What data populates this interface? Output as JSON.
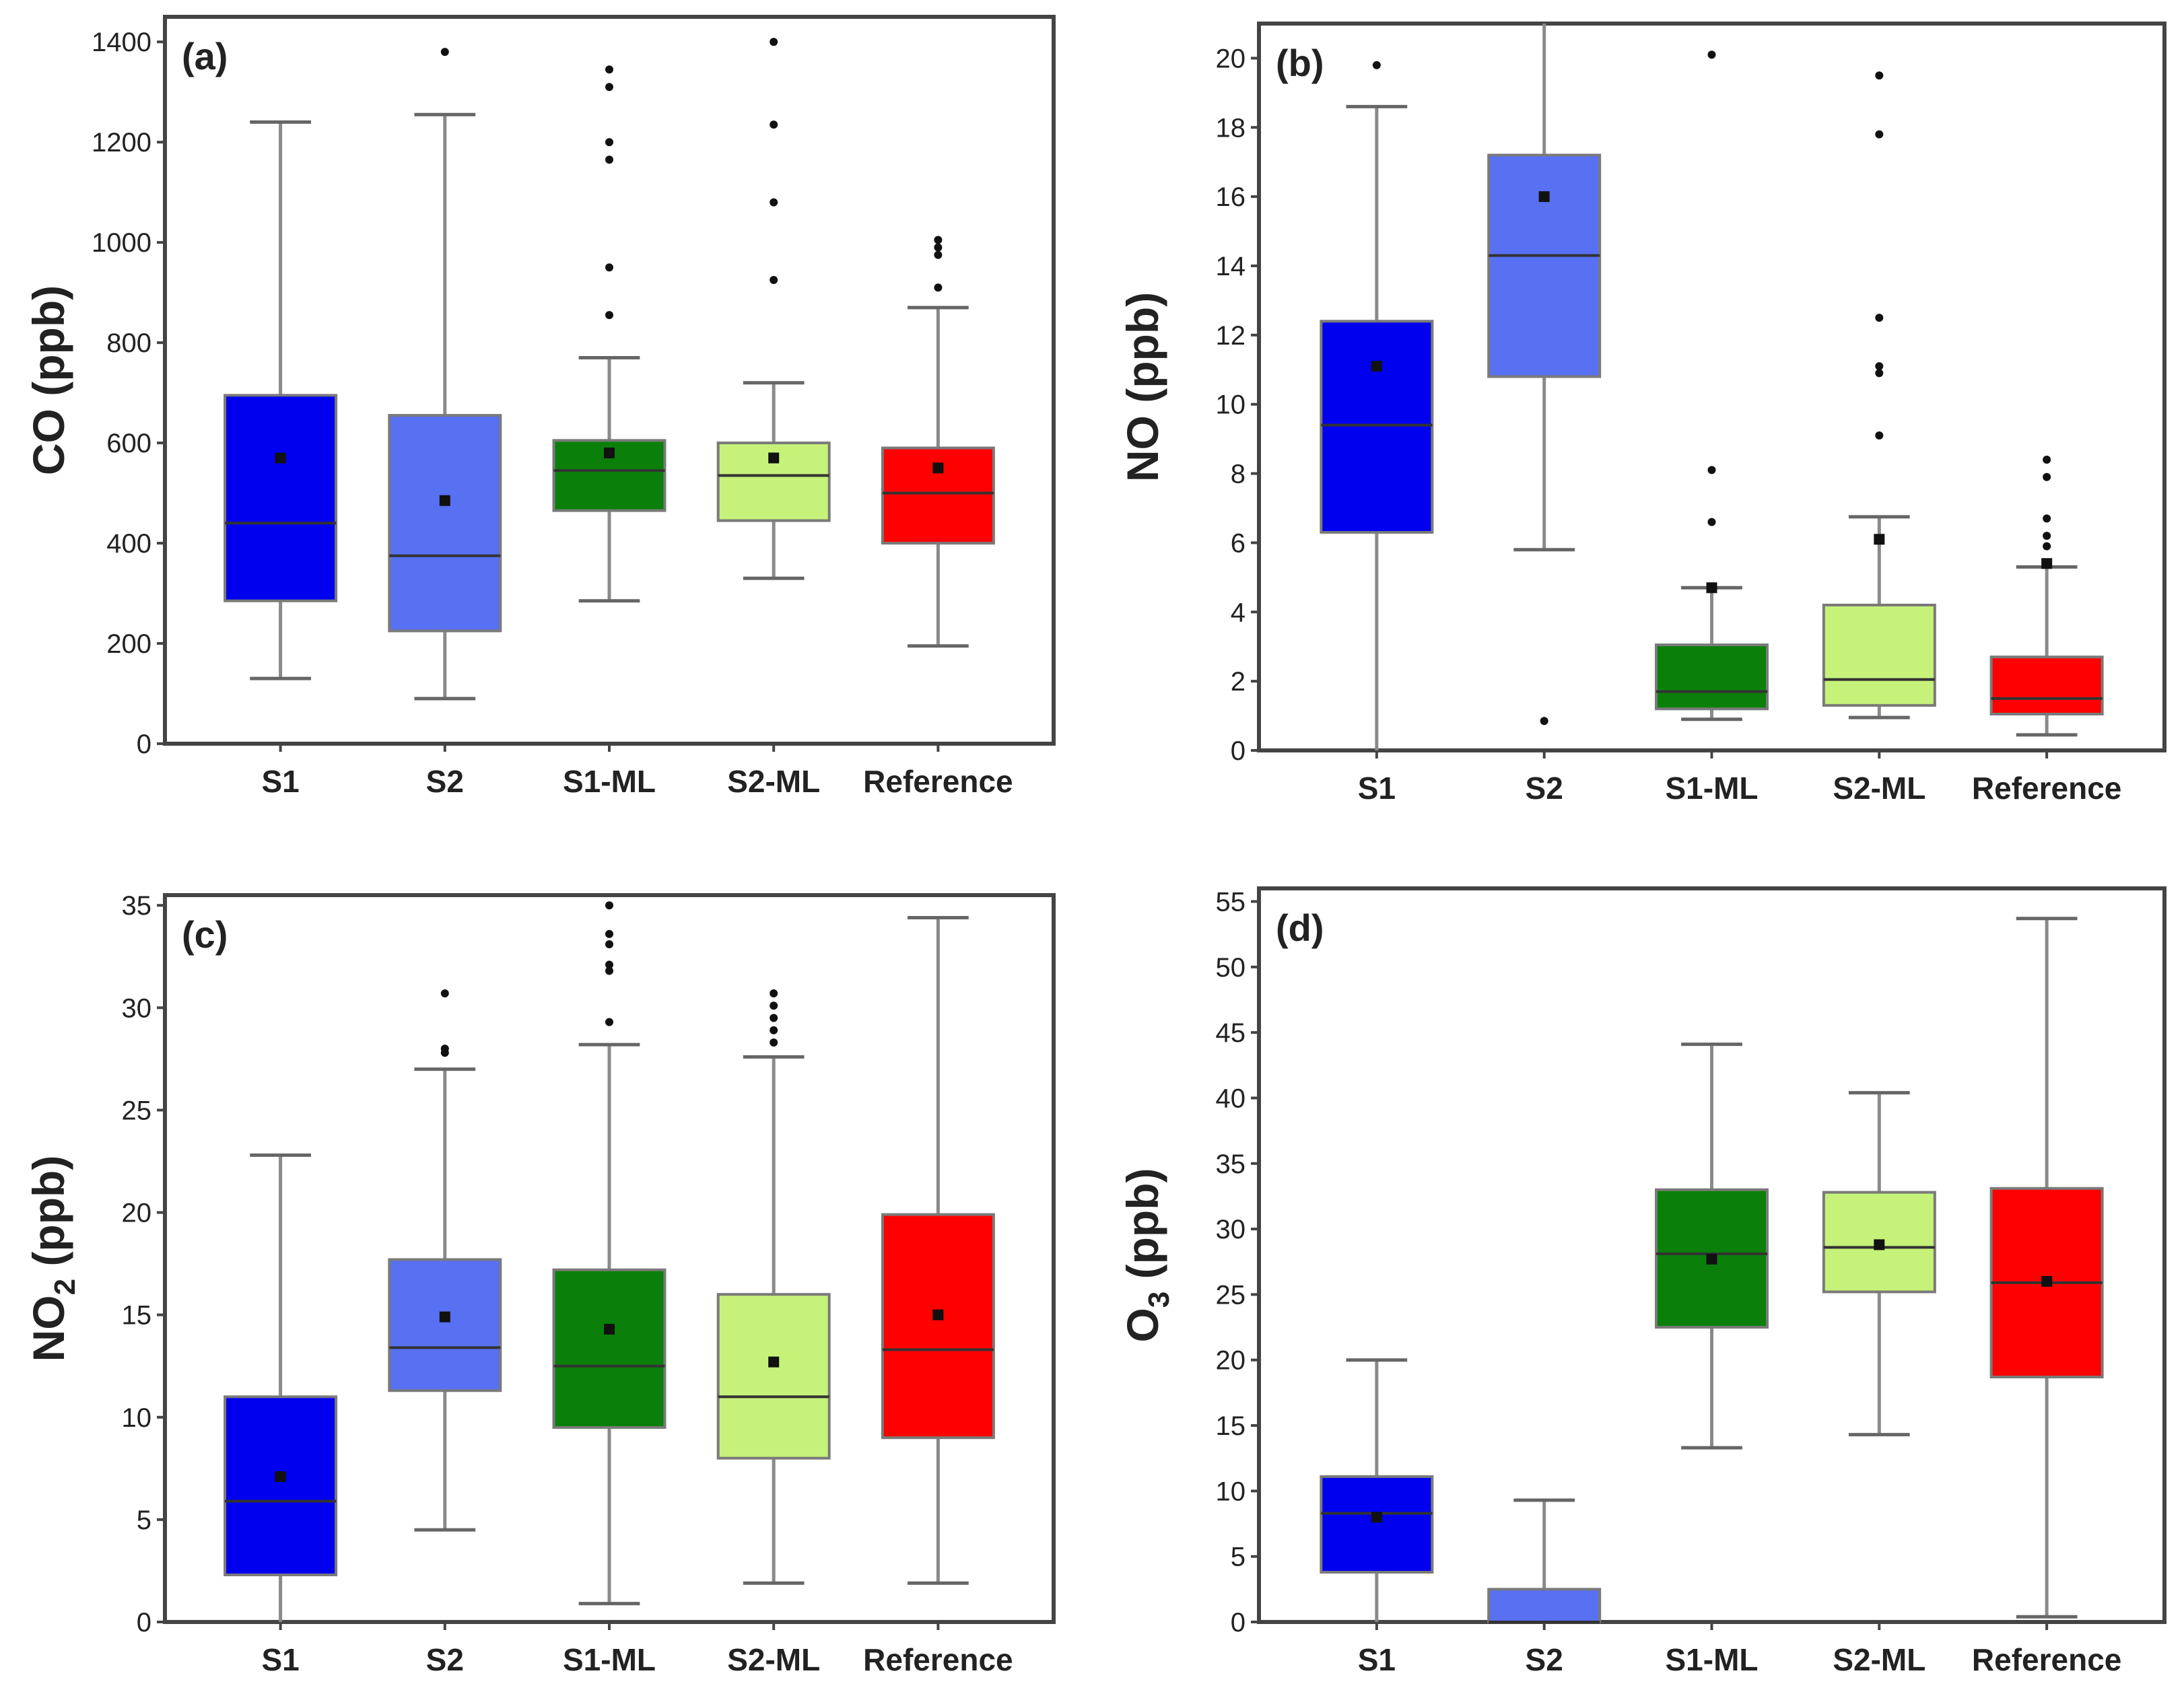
{
  "chart_data": [
    {
      "type": "box",
      "panel_label": "(a)",
      "ylabel": "CO (ppb)",
      "ylabel_main": "CO",
      "ylabel_sub": "",
      "ylabel_unit": " (ppb)",
      "ylim": [
        0,
        1450
      ],
      "yticks": [
        0,
        200,
        400,
        600,
        800,
        1000,
        1200,
        1400
      ],
      "categories": [
        "S1",
        "S2",
        "S1-ML",
        "S2-ML",
        "Reference"
      ],
      "boxes": [
        {
          "name": "S1",
          "color": "#0000ee",
          "whisker_low": 130,
          "q1": 285,
          "median": 440,
          "q3": 695,
          "whisker_high": 1240,
          "mean": 570,
          "outliers": []
        },
        {
          "name": "S2",
          "color": "#5870f2",
          "whisker_low": 90,
          "q1": 225,
          "median": 375,
          "q3": 655,
          "whisker_high": 1255,
          "mean": 485,
          "outliers": [
            1380
          ]
        },
        {
          "name": "S1-ML",
          "color": "#0a800a",
          "whisker_low": 285,
          "q1": 465,
          "median": 545,
          "q3": 605,
          "whisker_high": 770,
          "mean": 580,
          "outliers": [
            855,
            950,
            1165,
            1200,
            1310,
            1345
          ]
        },
        {
          "name": "S2-ML",
          "color": "#c6f27a",
          "whisker_low": 330,
          "q1": 445,
          "median": 535,
          "q3": 600,
          "whisker_high": 720,
          "mean": 570,
          "outliers": [
            925,
            1080,
            1235,
            1400
          ]
        },
        {
          "name": "Reference",
          "color": "#ff0000",
          "whisker_low": 195,
          "q1": 400,
          "median": 500,
          "q3": 590,
          "whisker_high": 870,
          "mean": 550,
          "outliers": [
            910,
            975,
            990,
            1005
          ]
        }
      ]
    },
    {
      "type": "box",
      "panel_label": "(b)",
      "ylabel": "NO (ppb)",
      "ylabel_main": "NO",
      "ylabel_sub": "",
      "ylabel_unit": " (ppb)",
      "ylim": [
        0,
        21
      ],
      "yticks": [
        0,
        2,
        4,
        6,
        8,
        10,
        12,
        14,
        16,
        18,
        20
      ],
      "categories": [
        "S1",
        "S2",
        "S1-ML",
        "S2-ML",
        "Reference"
      ],
      "boxes": [
        {
          "name": "S1",
          "color": "#0000ee",
          "whisker_low": 0,
          "q1": 6.3,
          "median": 9.4,
          "q3": 12.4,
          "whisker_high": 18.6,
          "mean": 11.1,
          "outliers": [
            19.8
          ]
        },
        {
          "name": "S2",
          "color": "#5870f2",
          "whisker_low": 5.8,
          "q1": 10.8,
          "median": 14.3,
          "q3": 17.2,
          "whisker_high": 21,
          "mean": 16.0,
          "outliers": [
            0.85
          ]
        },
        {
          "name": "S1-ML",
          "color": "#0a800a",
          "whisker_low": 0.9,
          "q1": 1.2,
          "median": 1.7,
          "q3": 3.05,
          "whisker_high": 4.7,
          "mean": 4.7,
          "outliers": [
            6.6,
            8.1,
            20.1
          ]
        },
        {
          "name": "S2-ML",
          "color": "#c6f27a",
          "whisker_low": 0.95,
          "q1": 1.3,
          "median": 2.05,
          "q3": 4.2,
          "whisker_high": 6.75,
          "mean": 6.1,
          "outliers": [
            9.1,
            10.9,
            11.1,
            12.5,
            17.8,
            19.5
          ]
        },
        {
          "name": "Reference",
          "color": "#ff0000",
          "whisker_low": 0.45,
          "q1": 1.05,
          "median": 1.5,
          "q3": 2.7,
          "whisker_high": 5.3,
          "mean": 5.4,
          "outliers": [
            5.9,
            6.2,
            6.7,
            7.9,
            8.4
          ]
        }
      ]
    },
    {
      "type": "box",
      "panel_label": "(c)",
      "ylabel": "NO2 (ppb)",
      "ylabel_main": "NO",
      "ylabel_sub": "2",
      "ylabel_unit": " (ppb)",
      "ylim": [
        0,
        35.5
      ],
      "yticks": [
        0,
        5,
        10,
        15,
        20,
        25,
        30,
        35
      ],
      "categories": [
        "S1",
        "S2",
        "S1-ML",
        "S2-ML",
        "Reference"
      ],
      "boxes": [
        {
          "name": "S1",
          "color": "#0000ee",
          "whisker_low": 0,
          "q1": 2.3,
          "median": 5.9,
          "q3": 11.0,
          "whisker_high": 22.8,
          "mean": 7.1,
          "outliers": []
        },
        {
          "name": "S2",
          "color": "#5870f2",
          "whisker_low": 4.5,
          "q1": 11.3,
          "median": 13.4,
          "q3": 17.7,
          "whisker_high": 27.0,
          "mean": 14.9,
          "outliers": [
            27.8,
            28.0,
            30.7
          ]
        },
        {
          "name": "S1-ML",
          "color": "#0a800a",
          "whisker_low": 0.9,
          "q1": 9.5,
          "median": 12.5,
          "q3": 17.2,
          "whisker_high": 28.2,
          "mean": 14.3,
          "outliers": [
            29.3,
            31.8,
            32.1,
            33.1,
            33.6,
            35.0
          ]
        },
        {
          "name": "S2-ML",
          "color": "#c6f27a",
          "whisker_low": 1.9,
          "q1": 8.0,
          "median": 11.0,
          "q3": 16.0,
          "whisker_high": 27.6,
          "mean": 12.7,
          "outliers": [
            28.3,
            28.9,
            29.5,
            30.1,
            30.7
          ]
        },
        {
          "name": "Reference",
          "color": "#ff0000",
          "whisker_low": 1.9,
          "q1": 9.0,
          "median": 13.3,
          "q3": 19.9,
          "whisker_high": 34.4,
          "mean": 15.0,
          "outliers": []
        }
      ]
    },
    {
      "type": "box",
      "panel_label": "(d)",
      "ylabel": "O3 (ppb)",
      "ylabel_main": "O",
      "ylabel_sub": "3",
      "ylabel_unit": " (ppb)",
      "ylim": [
        0,
        56
      ],
      "yticks": [
        0,
        5,
        10,
        15,
        20,
        25,
        30,
        35,
        40,
        45,
        50,
        55
      ],
      "categories": [
        "S1",
        "S2",
        "S1-ML",
        "S2-ML",
        "Reference"
      ],
      "boxes": [
        {
          "name": "S1",
          "color": "#0000ee",
          "whisker_low": 0,
          "q1": 3.8,
          "median": 8.3,
          "q3": 11.1,
          "whisker_high": 20.0,
          "mean": 8.0,
          "outliers": []
        },
        {
          "name": "S2",
          "color": "#5870f2",
          "whisker_low": 0,
          "q1": 0,
          "median": 0,
          "q3": 2.5,
          "whisker_high": 9.3,
          "mean": null,
          "outliers": []
        },
        {
          "name": "S1-ML",
          "color": "#0a800a",
          "whisker_low": 13.3,
          "q1": 22.5,
          "median": 28.1,
          "q3": 33.0,
          "whisker_high": 44.1,
          "mean": 27.7,
          "outliers": []
        },
        {
          "name": "S2-ML",
          "color": "#c6f27a",
          "whisker_low": 14.3,
          "q1": 25.2,
          "median": 28.6,
          "q3": 32.8,
          "whisker_high": 40.4,
          "mean": 28.8,
          "outliers": []
        },
        {
          "name": "Reference",
          "color": "#ff0000",
          "whisker_low": 0.4,
          "q1": 18.7,
          "median": 25.9,
          "q3": 33.1,
          "whisker_high": 53.7,
          "mean": 26.0,
          "outliers": []
        }
      ]
    }
  ]
}
